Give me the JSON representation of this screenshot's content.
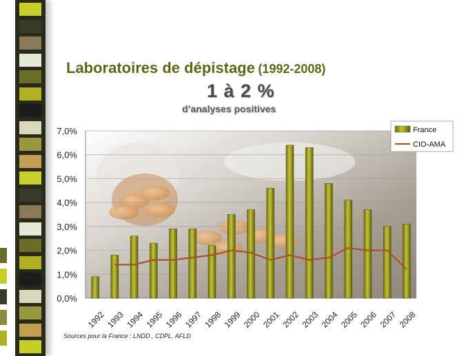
{
  "slide": {
    "title": "Laboratoires de dépistage",
    "title_years": "(1992-2008)",
    "big_value": "1 à 2 %",
    "subtitle": "d’analyses positives",
    "source": "Sources pour la France : LNDD , CDPL, AFLD"
  },
  "colors": {
    "title": "#5f6416",
    "bar_fill": "#9a9a1a",
    "line": "#a8502a"
  },
  "chart_data": {
    "type": "bar",
    "categories": [
      "1992",
      "1993",
      "1994",
      "1995",
      "1996",
      "1997",
      "1998",
      "1999",
      "2000",
      "2001",
      "2002",
      "2003",
      "2004",
      "2005",
      "2006",
      "2007",
      "2008"
    ],
    "y_tick_labels": [
      "0,0%",
      "1,0%",
      "2,0%",
      "3,0%",
      "4,0%",
      "5,0%",
      "6,0%",
      "7,0%"
    ],
    "ylim": [
      0,
      7
    ],
    "grid": true,
    "legend_position": "top-right",
    "series": [
      {
        "name": "France",
        "type": "bar",
        "values": [
          0.9,
          1.8,
          2.6,
          2.3,
          2.9,
          2.9,
          2.2,
          3.5,
          3.7,
          4.6,
          6.4,
          6.3,
          4.8,
          4.1,
          3.7,
          3.0,
          3.1
        ]
      },
      {
        "name": "CIO-AMA",
        "type": "line",
        "values": [
          null,
          1.4,
          1.4,
          1.6,
          1.6,
          1.7,
          1.8,
          2.0,
          1.9,
          1.6,
          1.8,
          1.6,
          1.7,
          2.1,
          2.0,
          2.0,
          1.2
        ]
      }
    ]
  }
}
